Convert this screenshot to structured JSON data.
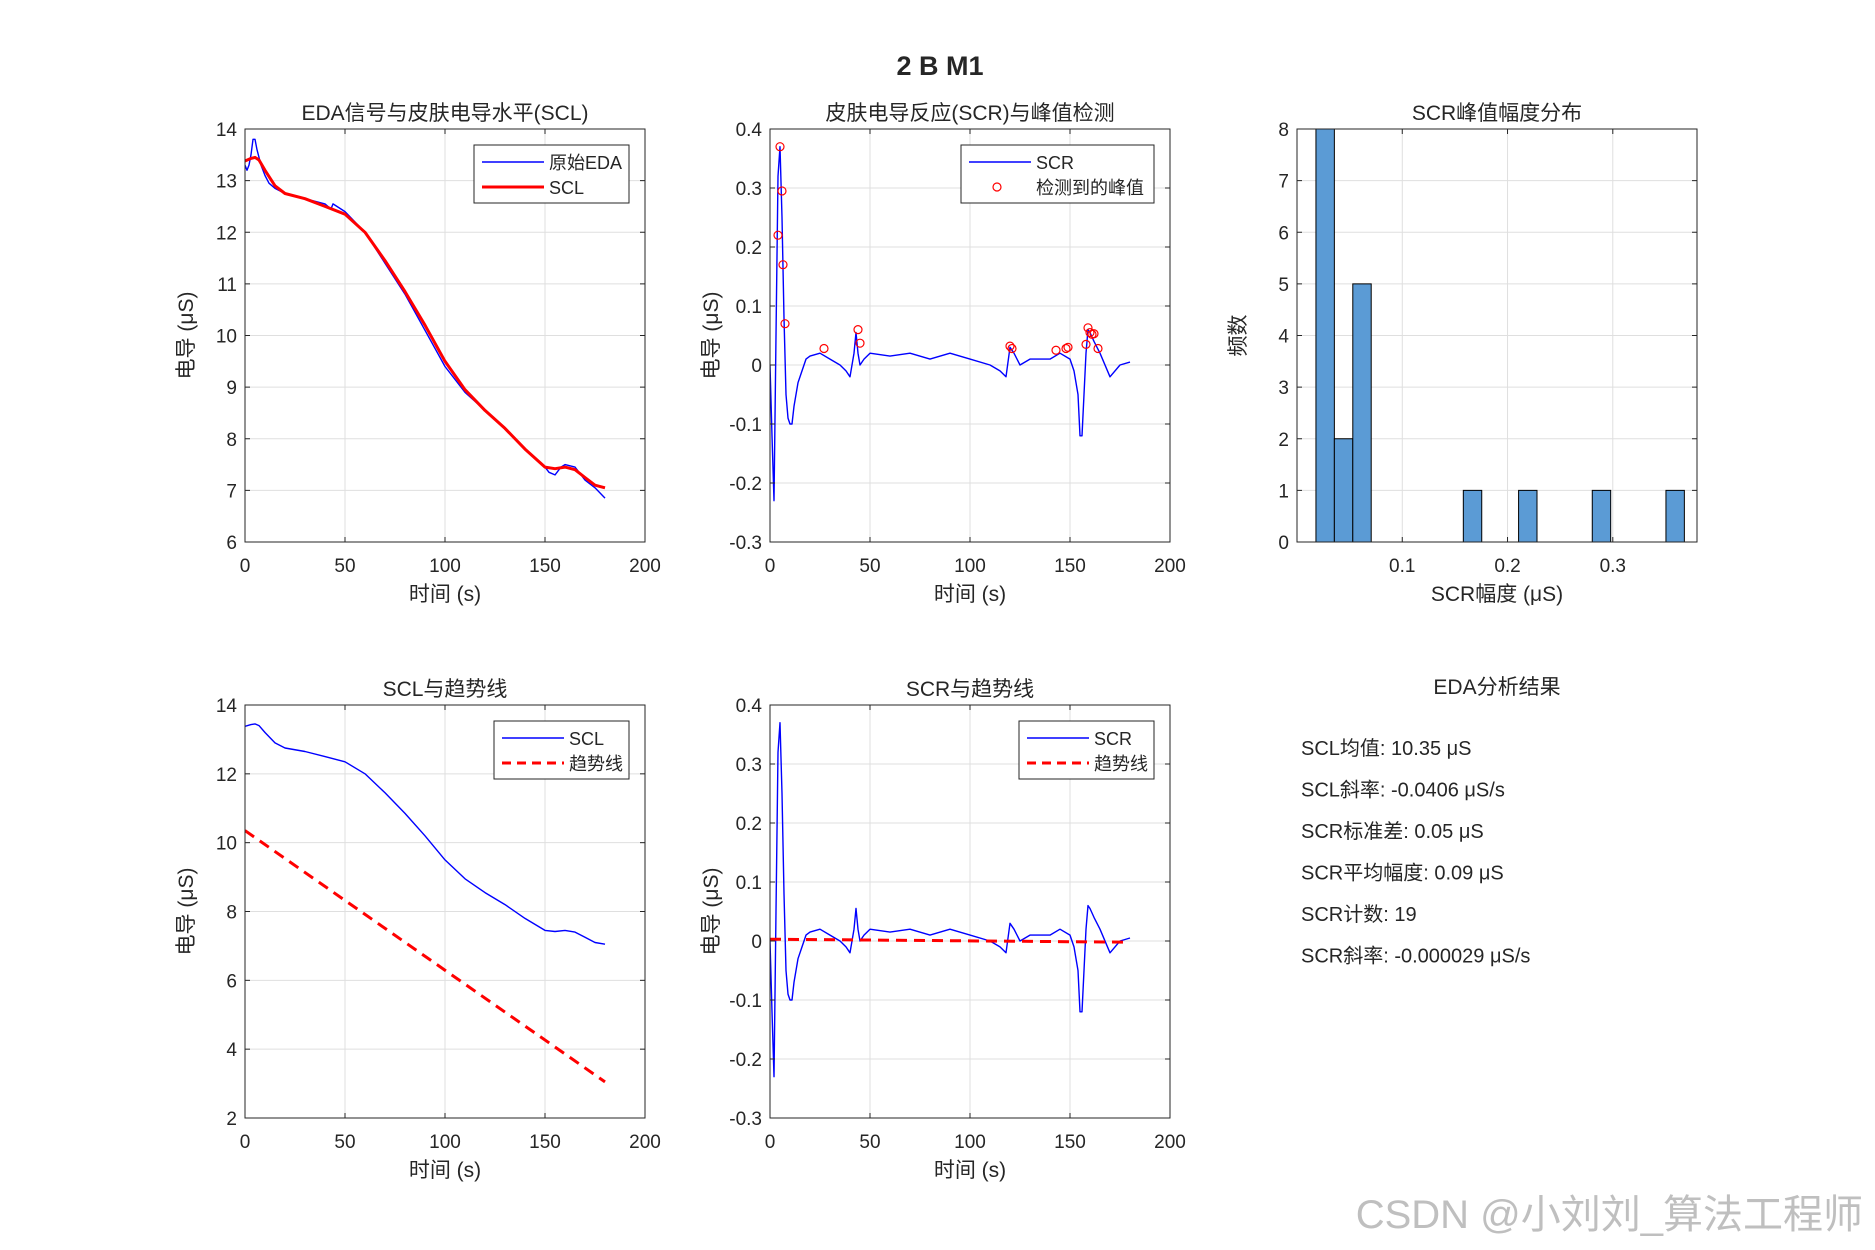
{
  "figure": {
    "title": "2 B M1"
  },
  "colors": {
    "blue": "#0000FF",
    "red": "#FF0000",
    "bar": "#5B9BD5",
    "grid": "#DFDFDF",
    "axis": "#262626"
  },
  "watermark": "CSDN @小刘刘_算法工程师",
  "chart_data": [
    {
      "type": "line",
      "title": "EDA信号与皮肤电导水平(SCL)",
      "xlabel": "时间 (s)",
      "ylabel": "电导 (μS)",
      "xlim": [
        0,
        200
      ],
      "ylim": [
        6,
        14
      ],
      "xticks": [
        0,
        50,
        100,
        150,
        200
      ],
      "yticks": [
        6,
        7,
        8,
        9,
        10,
        11,
        12,
        13,
        14
      ],
      "grid": true,
      "legend_position": "top-right",
      "series": [
        {
          "name": "原始EDA",
          "color": "#0000FF",
          "style": "solid",
          "width": "thin",
          "x": [
            0,
            1,
            2,
            3,
            4,
            5,
            6,
            8,
            10,
            12,
            15,
            20,
            30,
            40,
            43,
            44,
            50,
            60,
            70,
            80,
            90,
            100,
            110,
            120,
            130,
            140,
            150,
            152,
            155,
            158,
            160,
            165,
            170,
            175,
            180
          ],
          "y": [
            13.3,
            13.2,
            13.3,
            13.5,
            13.8,
            13.8,
            13.6,
            13.3,
            13.1,
            12.95,
            12.85,
            12.75,
            12.65,
            12.55,
            12.45,
            12.55,
            12.4,
            12.0,
            11.4,
            10.8,
            10.1,
            9.4,
            8.9,
            8.55,
            8.2,
            7.8,
            7.45,
            7.35,
            7.3,
            7.45,
            7.5,
            7.45,
            7.2,
            7.05,
            6.85
          ]
        },
        {
          "name": "SCL",
          "color": "#FF0000",
          "style": "solid",
          "width": "thick",
          "x": [
            0,
            3,
            5,
            7,
            10,
            15,
            20,
            30,
            40,
            50,
            60,
            70,
            80,
            90,
            100,
            110,
            120,
            130,
            140,
            150,
            155,
            160,
            165,
            170,
            175,
            180
          ],
          "y": [
            13.38,
            13.43,
            13.45,
            13.4,
            13.2,
            12.9,
            12.75,
            12.65,
            12.5,
            12.35,
            12.0,
            11.45,
            10.85,
            10.2,
            9.5,
            8.95,
            8.55,
            8.2,
            7.8,
            7.45,
            7.42,
            7.45,
            7.4,
            7.25,
            7.1,
            7.05
          ]
        }
      ]
    },
    {
      "type": "line",
      "title": "皮肤电导反应(SCR)与峰值检测",
      "xlabel": "时间 (s)",
      "ylabel": "电导 (μS)",
      "xlim": [
        0,
        200
      ],
      "ylim": [
        -0.3,
        0.4
      ],
      "xticks": [
        0,
        50,
        100,
        150,
        200
      ],
      "yticks": [
        -0.3,
        -0.2,
        -0.1,
        0,
        0.1,
        0.2,
        0.3,
        0.4
      ],
      "grid": true,
      "legend_position": "top-right",
      "series": [
        {
          "name": "SCR",
          "color": "#0000FF",
          "style": "solid",
          "x": [
            0,
            1,
            2,
            3,
            4,
            5,
            6,
            7,
            8,
            9,
            10,
            11,
            12,
            14,
            16,
            18,
            20,
            25,
            30,
            35,
            38,
            40,
            42,
            43,
            44,
            45,
            47,
            50,
            60,
            70,
            80,
            90,
            100,
            110,
            115,
            118,
            120,
            122,
            125,
            130,
            140,
            145,
            150,
            152,
            154,
            155,
            156,
            157,
            158,
            159,
            160,
            162,
            165,
            170,
            175,
            180
          ],
          "y": [
            0.0,
            -0.12,
            -0.23,
            0.05,
            0.32,
            0.37,
            0.25,
            0.08,
            -0.05,
            -0.09,
            -0.1,
            -0.1,
            -0.07,
            -0.03,
            -0.01,
            0.01,
            0.015,
            0.02,
            0.01,
            0.0,
            -0.01,
            -0.02,
            0.02,
            0.055,
            0.02,
            0.0,
            0.01,
            0.02,
            0.015,
            0.02,
            0.01,
            0.02,
            0.01,
            0.0,
            -0.01,
            -0.02,
            0.03,
            0.02,
            0.0,
            0.01,
            0.01,
            0.02,
            0.01,
            -0.01,
            -0.05,
            -0.12,
            -0.12,
            -0.05,
            0.02,
            0.06,
            0.055,
            0.04,
            0.02,
            -0.02,
            0.0,
            0.005
          ]
        },
        {
          "name": "检测到的峰值",
          "color": "#FF0000",
          "style": "circle-marker",
          "x": [
            4,
            5,
            6,
            6.5,
            7.5,
            27,
            44,
            45,
            120,
            121,
            143,
            148,
            149,
            158,
            159,
            160,
            161,
            162,
            164
          ],
          "y": [
            0.22,
            0.37,
            0.295,
            0.17,
            0.07,
            0.028,
            0.06,
            0.037,
            0.032,
            0.028,
            0.025,
            0.028,
            0.03,
            0.035,
            0.063,
            0.055,
            0.052,
            0.053,
            0.028
          ]
        }
      ]
    },
    {
      "type": "bar",
      "title": "SCR峰值幅度分布",
      "xlabel": "SCR幅度 (μS)",
      "ylabel": "频数",
      "xlim": [
        0.0,
        0.38
      ],
      "ylim": [
        0,
        8
      ],
      "xticks": [
        0.1,
        0.2,
        0.3
      ],
      "yticks": [
        0,
        1,
        2,
        3,
        4,
        5,
        6,
        7,
        8
      ],
      "grid": true,
      "bin_edges": [
        0.018,
        0.0355,
        0.053,
        0.0705,
        0.088,
        0.1055,
        0.123,
        0.1405,
        0.158,
        0.1755,
        0.193,
        0.2105,
        0.228,
        0.2455,
        0.263,
        0.2805,
        0.298,
        0.3155,
        0.333,
        0.3505,
        0.368
      ],
      "counts": [
        8,
        2,
        5,
        0,
        0,
        0,
        0,
        0,
        1,
        0,
        0,
        1,
        0,
        0,
        0,
        1,
        0,
        0,
        0,
        1
      ]
    },
    {
      "type": "line",
      "title": "SCL与趋势线",
      "xlabel": "时间 (s)",
      "ylabel": "电导 (μS)",
      "xlim": [
        0,
        200
      ],
      "ylim": [
        2,
        14
      ],
      "xticks": [
        0,
        50,
        100,
        150,
        200
      ],
      "yticks": [
        2,
        4,
        6,
        8,
        10,
        12,
        14
      ],
      "grid": true,
      "legend_position": "top-right",
      "series": [
        {
          "name": "SCL",
          "color": "#0000FF",
          "style": "solid",
          "x": [
            0,
            3,
            5,
            7,
            10,
            15,
            20,
            30,
            40,
            50,
            60,
            70,
            80,
            90,
            100,
            110,
            120,
            130,
            140,
            150,
            155,
            160,
            165,
            170,
            175,
            180
          ],
          "y": [
            13.38,
            13.43,
            13.45,
            13.4,
            13.2,
            12.9,
            12.75,
            12.65,
            12.5,
            12.35,
            12.0,
            11.45,
            10.85,
            10.2,
            9.5,
            8.95,
            8.55,
            8.2,
            7.8,
            7.45,
            7.42,
            7.45,
            7.4,
            7.25,
            7.1,
            7.05
          ]
        },
        {
          "name": "趋势线",
          "color": "#FF0000",
          "style": "dashed",
          "x": [
            0,
            180
          ],
          "y": [
            10.35,
            3.05
          ]
        }
      ]
    },
    {
      "type": "line",
      "title": "SCR与趋势线",
      "xlabel": "时间 (s)",
      "ylabel": "电导 (μS)",
      "xlim": [
        0,
        200
      ],
      "ylim": [
        -0.3,
        0.4
      ],
      "xticks": [
        0,
        50,
        100,
        150,
        200
      ],
      "yticks": [
        -0.3,
        -0.2,
        -0.1,
        0,
        0.1,
        0.2,
        0.3,
        0.4
      ],
      "grid": true,
      "legend_position": "top-right",
      "series": [
        {
          "name": "SCR",
          "color": "#0000FF",
          "style": "solid",
          "x": [
            0,
            1,
            2,
            3,
            4,
            5,
            6,
            7,
            8,
            9,
            10,
            11,
            12,
            14,
            16,
            18,
            20,
            25,
            30,
            35,
            38,
            40,
            42,
            43,
            44,
            45,
            47,
            50,
            60,
            70,
            80,
            90,
            100,
            110,
            115,
            118,
            120,
            122,
            125,
            130,
            140,
            145,
            150,
            152,
            154,
            155,
            156,
            157,
            158,
            159,
            160,
            162,
            165,
            170,
            175,
            180
          ],
          "y": [
            0.0,
            -0.12,
            -0.23,
            0.05,
            0.32,
            0.37,
            0.25,
            0.08,
            -0.05,
            -0.09,
            -0.1,
            -0.1,
            -0.07,
            -0.03,
            -0.01,
            0.01,
            0.015,
            0.02,
            0.01,
            0.0,
            -0.01,
            -0.02,
            0.02,
            0.055,
            0.02,
            0.0,
            0.01,
            0.02,
            0.015,
            0.02,
            0.01,
            0.02,
            0.01,
            0.0,
            -0.01,
            -0.02,
            0.03,
            0.02,
            0.0,
            0.01,
            0.01,
            0.02,
            0.01,
            -0.01,
            -0.05,
            -0.12,
            -0.12,
            -0.05,
            0.02,
            0.06,
            0.055,
            0.04,
            0.02,
            -0.02,
            0.0,
            0.005
          ]
        },
        {
          "name": "趋势线",
          "color": "#FF0000",
          "style": "dashed",
          "x": [
            0,
            180
          ],
          "y": [
            0.003,
            -0.002
          ]
        }
      ]
    }
  ],
  "results": {
    "title": "EDA分析结果",
    "lines": [
      "SCL均值: 10.35 μS",
      "SCL斜率: -0.0406 μS/s",
      "SCR标准差: 0.05 μS",
      "SCR平均幅度: 0.09 μS",
      "SCR计数: 19",
      "SCR斜率: -0.000029 μS/s"
    ]
  }
}
